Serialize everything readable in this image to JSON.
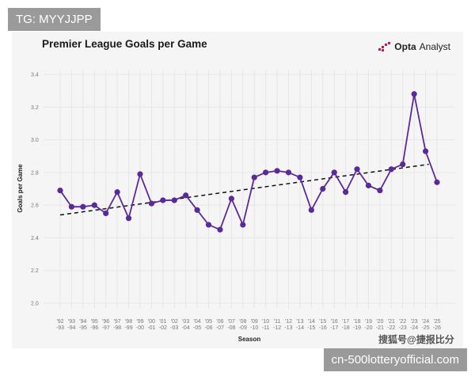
{
  "overlay": {
    "tg": "TG: MYYJJPP",
    "site": "cn-500lotteryofficial.com",
    "watermark": "搜狐号@捷报比分"
  },
  "logo": {
    "brand": "Opta",
    "product": "Analyst",
    "color": "#c2185b"
  },
  "chart_data": {
    "type": "line",
    "title": "Premier League Goals per Game",
    "xlabel": "Season",
    "ylabel": "Goals per Game",
    "ylim": [
      2.0,
      3.4
    ],
    "yticks": [
      2.0,
      2.2,
      2.4,
      2.6,
      2.8,
      3.0,
      3.2,
      3.4
    ],
    "grid": true,
    "categories": [
      "'92\n-93",
      "'93\n-94",
      "'94\n-95",
      "'95\n-96",
      "'96\n-97",
      "'97\n-98",
      "'98\n-99",
      "'99\n-00",
      "'00\n-01",
      "'01\n-02",
      "'02\n-03",
      "'03\n-04",
      "'04\n-05",
      "'05\n-06",
      "'06\n-07",
      "'07\n-08",
      "'08\n-09",
      "'09\n-10",
      "'10\n-11",
      "'11\n-12",
      "'12\n-13",
      "'13\n-14",
      "'14\n-15",
      "'15\n-16",
      "'16\n-17",
      "'17\n-18",
      "'18\n-19",
      "'19\n-20",
      "'20\n-21",
      "'21\n-22",
      "'22\n-23",
      "'23\n-24",
      "'24\n-25",
      "'25\n-26"
    ],
    "values": [
      2.69,
      2.59,
      2.59,
      2.6,
      2.55,
      2.68,
      2.52,
      2.79,
      2.61,
      2.63,
      2.63,
      2.66,
      2.57,
      2.48,
      2.45,
      2.64,
      2.48,
      2.77,
      2.8,
      2.81,
      2.8,
      2.77,
      2.57,
      2.7,
      2.8,
      2.68,
      2.82,
      2.72,
      2.69,
      2.82,
      2.85,
      3.28,
      2.93,
      2.74
    ],
    "trendline": {
      "start": 2.54,
      "end": 2.85,
      "style": "dashed"
    },
    "line_color": "#5b2a9a"
  }
}
